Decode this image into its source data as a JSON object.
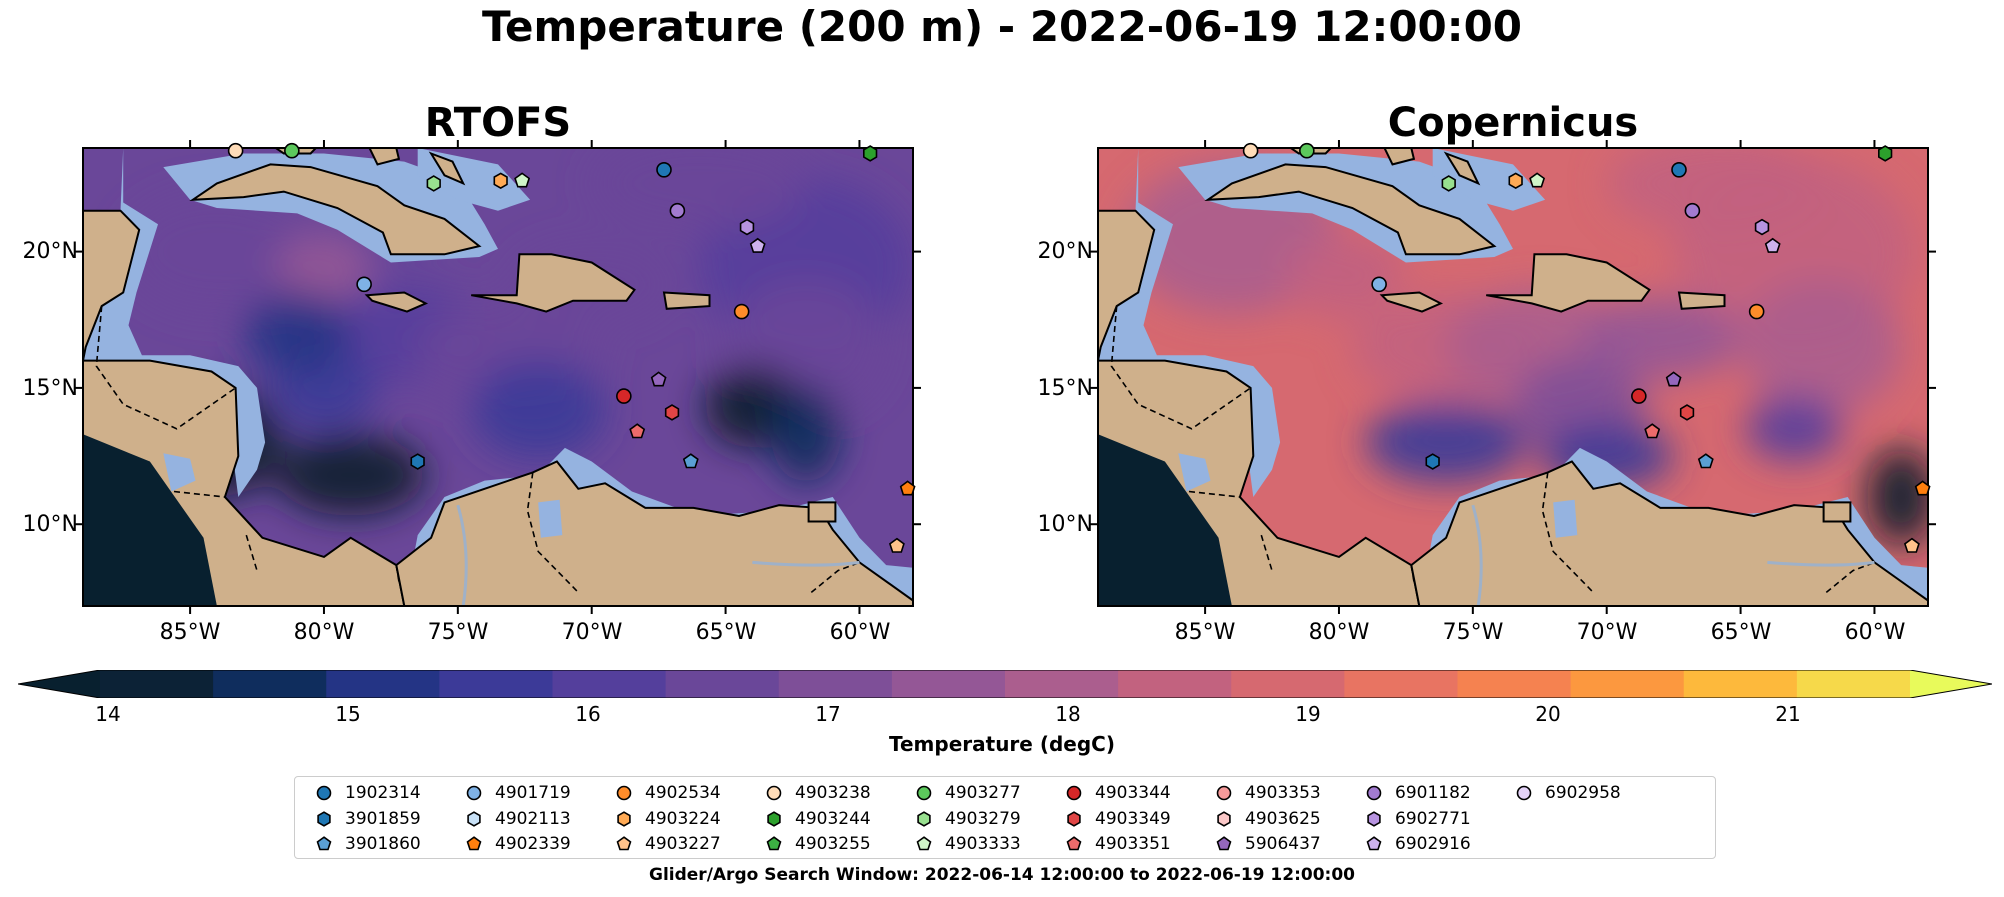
{
  "title": "Temperature (200 m) - 2022-06-19 12:00:00",
  "panels": [
    {
      "id": "rtofs",
      "title": "RTOFS"
    },
    {
      "id": "copernicus",
      "title": "Copernicus"
    }
  ],
  "lat_labels": [
    "20°N",
    "15°N",
    "10°N"
  ],
  "lon_labels": [
    "85°W",
    "80°W",
    "75°W",
    "70°W",
    "65°W",
    "60°W"
  ],
  "colorbar": {
    "label": "Temperature (degC)",
    "ticks": [
      "14",
      "15",
      "16",
      "17",
      "18",
      "19",
      "20",
      "21"
    ],
    "colors": [
      "#0c2236",
      "#0f2d5d",
      "#243485",
      "#3c3a98",
      "#543f9c",
      "#6a4799",
      "#7e4f98",
      "#945796",
      "#ab5e8e",
      "#c2627f",
      "#d66970",
      "#e87462",
      "#f58250",
      "#fc983f",
      "#fdb93c",
      "#f6d94a"
    ],
    "under_color": "#08202f",
    "over_color": "#e8fa5b"
  },
  "legend": {
    "caption": "Glider/Argo Search Window: 2022-06-14 12:00:00 to 2022-06-19 12:00:00",
    "items": [
      {
        "id": "1902314",
        "color": "#1f77b4",
        "marker": "circle"
      },
      {
        "id": "3901859",
        "color": "#1f77b4",
        "marker": "hexagon"
      },
      {
        "id": "3901860",
        "color": "#5a9fd4",
        "marker": "pentagon"
      },
      {
        "id": "4901719",
        "color": "#7fb2e6",
        "marker": "circle"
      },
      {
        "id": "4902113",
        "color": "#c8e1f7",
        "marker": "hexagon"
      },
      {
        "id": "4902339",
        "color": "#ff7f0e",
        "marker": "pentagon"
      },
      {
        "id": "4902534",
        "color": "#ff8c2a",
        "marker": "circle"
      },
      {
        "id": "4903224",
        "color": "#ffaa55",
        "marker": "hexagon"
      },
      {
        "id": "4903227",
        "color": "#ffc28a",
        "marker": "pentagon"
      },
      {
        "id": "4903238",
        "color": "#ffdcb8",
        "marker": "circle"
      },
      {
        "id": "4903244",
        "color": "#2ca02c",
        "marker": "hexagon"
      },
      {
        "id": "4903255",
        "color": "#3cb043",
        "marker": "pentagon"
      },
      {
        "id": "4903277",
        "color": "#5cc85c",
        "marker": "circle"
      },
      {
        "id": "4903279",
        "color": "#98e08f",
        "marker": "hexagon"
      },
      {
        "id": "4903333",
        "color": "#d0f5c8",
        "marker": "pentagon"
      },
      {
        "id": "4903344",
        "color": "#d62728",
        "marker": "circle"
      },
      {
        "id": "4903349",
        "color": "#e04545",
        "marker": "hexagon"
      },
      {
        "id": "4903351",
        "color": "#ec6b6b",
        "marker": "pentagon"
      },
      {
        "id": "4903353",
        "color": "#f59a9a",
        "marker": "circle"
      },
      {
        "id": "4903625",
        "color": "#fbc8c8",
        "marker": "hexagon"
      },
      {
        "id": "5906437",
        "color": "#9467bd",
        "marker": "pentagon"
      },
      {
        "id": "6901182",
        "color": "#a27bd0",
        "marker": "circle"
      },
      {
        "id": "6902771",
        "color": "#b793e0",
        "marker": "hexagon"
      },
      {
        "id": "6902916",
        "color": "#cdb2ee",
        "marker": "pentagon"
      },
      {
        "id": "6902958",
        "color": "#e4d3f8",
        "marker": "circle"
      }
    ]
  },
  "map_features": {
    "ocean_color": "#95b3e0",
    "land_color": "#cfb08b",
    "extent": {
      "lon_min": -89,
      "lon_max": -58,
      "lat_min": 7,
      "lat_max": 23.8
    },
    "observations": [
      {
        "id": "1902314",
        "lon": -67.3,
        "lat": 23.0
      },
      {
        "id": "4901719",
        "lon": -78.5,
        "lat": 18.8
      },
      {
        "id": "4902534",
        "lon": -64.4,
        "lat": 17.8
      },
      {
        "id": "4903238",
        "lon": -83.3,
        "lat": 23.7
      },
      {
        "id": "4903277",
        "lon": -81.2,
        "lat": 23.7
      },
      {
        "id": "4903244",
        "lon": -59.6,
        "lat": 23.6
      },
      {
        "id": "4903279",
        "lon": -75.9,
        "lat": 22.5
      },
      {
        "id": "4903333",
        "lon": -72.6,
        "lat": 22.6
      },
      {
        "id": "4903224",
        "lon": -73.4,
        "lat": 22.6
      },
      {
        "id": "6901182",
        "lon": -66.8,
        "lat": 21.5
      },
      {
        "id": "6902771",
        "lon": -64.2,
        "lat": 20.9
      },
      {
        "id": "6902916",
        "lon": -63.8,
        "lat": 20.2
      },
      {
        "id": "4903344",
        "lon": -68.8,
        "lat": 14.7
      },
      {
        "id": "5906437",
        "lon": -67.5,
        "lat": 15.3
      },
      {
        "id": "4903349",
        "lon": -67.0,
        "lat": 14.1
      },
      {
        "id": "4903351",
        "lon": -68.3,
        "lat": 13.4
      },
      {
        "id": "3901859",
        "lon": -76.5,
        "lat": 12.3
      },
      {
        "id": "3901860",
        "lon": -66.3,
        "lat": 12.3
      },
      {
        "id": "4902339",
        "lon": -58.2,
        "lat": 11.3
      },
      {
        "id": "4903227",
        "lon": -58.6,
        "lat": 9.2
      }
    ]
  }
}
